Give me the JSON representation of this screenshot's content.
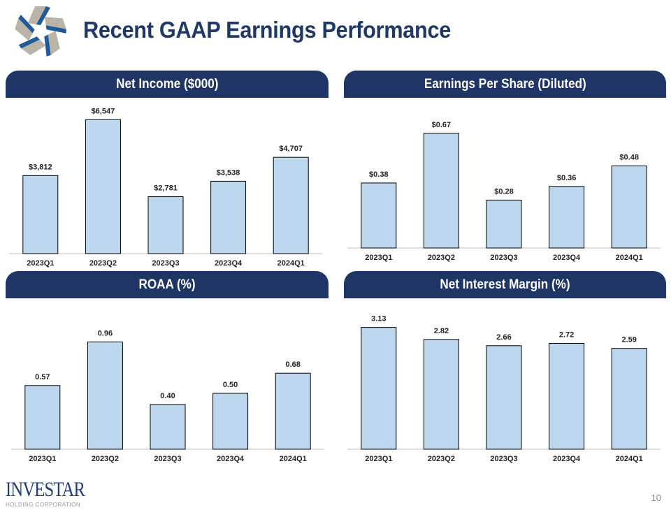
{
  "title": "Recent GAAP Earnings Performance",
  "page_number": "10",
  "brand": {
    "name": "INVESTAR",
    "sub": "HOLDING CORPORATION"
  },
  "colors": {
    "header": "#1f3566",
    "bar_fill": "#bdd7ee",
    "bar_stroke": "#000000",
    "title": "#1f3868"
  },
  "chart_data": [
    {
      "type": "bar",
      "title": "Net Income ($000)",
      "categories": [
        "2023Q1",
        "2023Q2",
        "2023Q3",
        "2023Q4",
        "2024Q1"
      ],
      "values": [
        3812,
        6547,
        2781,
        3538,
        4707
      ],
      "labels": [
        "$3,812",
        "$6,547",
        "$2,781",
        "$3,538",
        "$4,707"
      ],
      "ylim": [
        0,
        7000
      ],
      "grid": false
    },
    {
      "type": "bar",
      "title": "Earnings Per Share (Diluted)",
      "categories": [
        "2023Q1",
        "2023Q2",
        "2023Q3",
        "2023Q4",
        "2024Q1"
      ],
      "values": [
        0.38,
        0.67,
        0.28,
        0.36,
        0.48
      ],
      "labels": [
        "$0.38",
        "$0.67",
        "$0.28",
        "$0.36",
        "$0.48"
      ],
      "ylim": [
        0,
        0.8
      ],
      "grid": false
    },
    {
      "type": "bar",
      "title": "ROAA (%)",
      "categories": [
        "2023Q1",
        "2023Q2",
        "2023Q3",
        "2023Q4",
        "2024Q1"
      ],
      "values": [
        0.57,
        0.96,
        0.4,
        0.5,
        0.68
      ],
      "labels": [
        "0.57",
        "0.96",
        "0.40",
        "0.50",
        "0.68"
      ],
      "ylim": [
        0,
        1.2
      ],
      "grid": false
    },
    {
      "type": "bar",
      "title": "Net Interest Margin (%)",
      "categories": [
        "2023Q1",
        "2023Q2",
        "2023Q3",
        "2023Q4",
        "2024Q1"
      ],
      "values": [
        3.13,
        2.82,
        2.66,
        2.72,
        2.59
      ],
      "labels": [
        "3.13",
        "2.82",
        "2.66",
        "2.72",
        "2.59"
      ],
      "ylim": [
        0,
        3.5
      ],
      "grid": false
    }
  ]
}
